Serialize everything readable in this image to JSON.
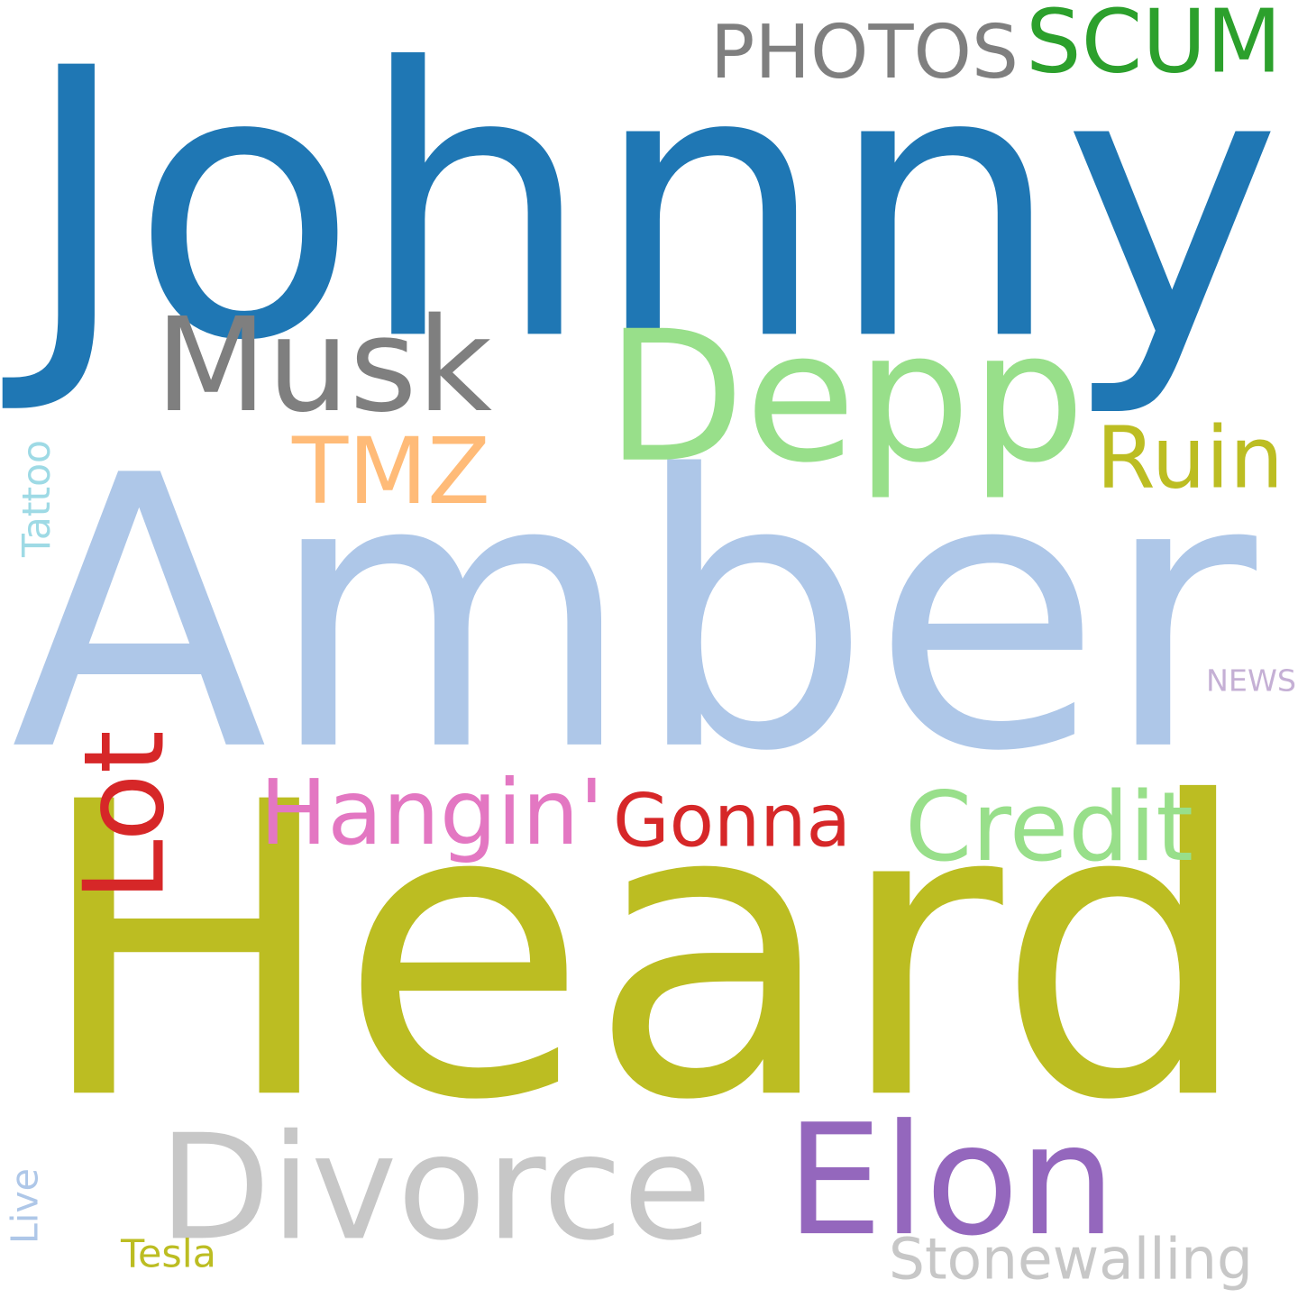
{
  "words": [
    {
      "id": "johnny",
      "text": "Johnny",
      "color": "#1f77b4",
      "rotated": false
    },
    {
      "id": "amber",
      "text": "Amber",
      "color": "#aec7e8",
      "rotated": false
    },
    {
      "id": "heard",
      "text": "Heard",
      "color": "#bcbd22",
      "rotated": false
    },
    {
      "id": "depp",
      "text": "Depp",
      "color": "#98df8a",
      "rotated": false
    },
    {
      "id": "musk",
      "text": "Musk",
      "color": "#7f7f7f",
      "rotated": false
    },
    {
      "id": "photos",
      "text": "PHOTOS",
      "color": "#7f7f7f",
      "rotated": false
    },
    {
      "id": "scum",
      "text": "SCUM",
      "color": "#2ca02c",
      "rotated": false
    },
    {
      "id": "tmz",
      "text": "TMZ",
      "color": "#ffbb78",
      "rotated": false
    },
    {
      "id": "ruin",
      "text": "Ruin",
      "color": "#bcbd22",
      "rotated": false
    },
    {
      "id": "tattoo",
      "text": "Tattoo",
      "color": "#9edae5",
      "rotated": true
    },
    {
      "id": "news",
      "text": "NEWS",
      "color": "#c5b0d5",
      "rotated": false
    },
    {
      "id": "lot",
      "text": "Lot",
      "color": "#d62728",
      "rotated": true
    },
    {
      "id": "hangin",
      "text": "Hangin'",
      "color": "#e377c2",
      "rotated": false
    },
    {
      "id": "gonna",
      "text": "Gonna",
      "color": "#d62728",
      "rotated": false
    },
    {
      "id": "credit",
      "text": "Credit",
      "color": "#98df8a",
      "rotated": false
    },
    {
      "id": "divorce",
      "text": "Divorce",
      "color": "#c7c7c7",
      "rotated": false
    },
    {
      "id": "elon",
      "text": "Elon",
      "color": "#9467bd",
      "rotated": false
    },
    {
      "id": "stonewalling",
      "text": "Stonewalling",
      "color": "#c7c7c7",
      "rotated": false
    },
    {
      "id": "live",
      "text": "Live",
      "color": "#aec7e8",
      "rotated": true
    },
    {
      "id": "tesla",
      "text": "Tesla",
      "color": "#bcbd22",
      "rotated": false
    }
  ]
}
